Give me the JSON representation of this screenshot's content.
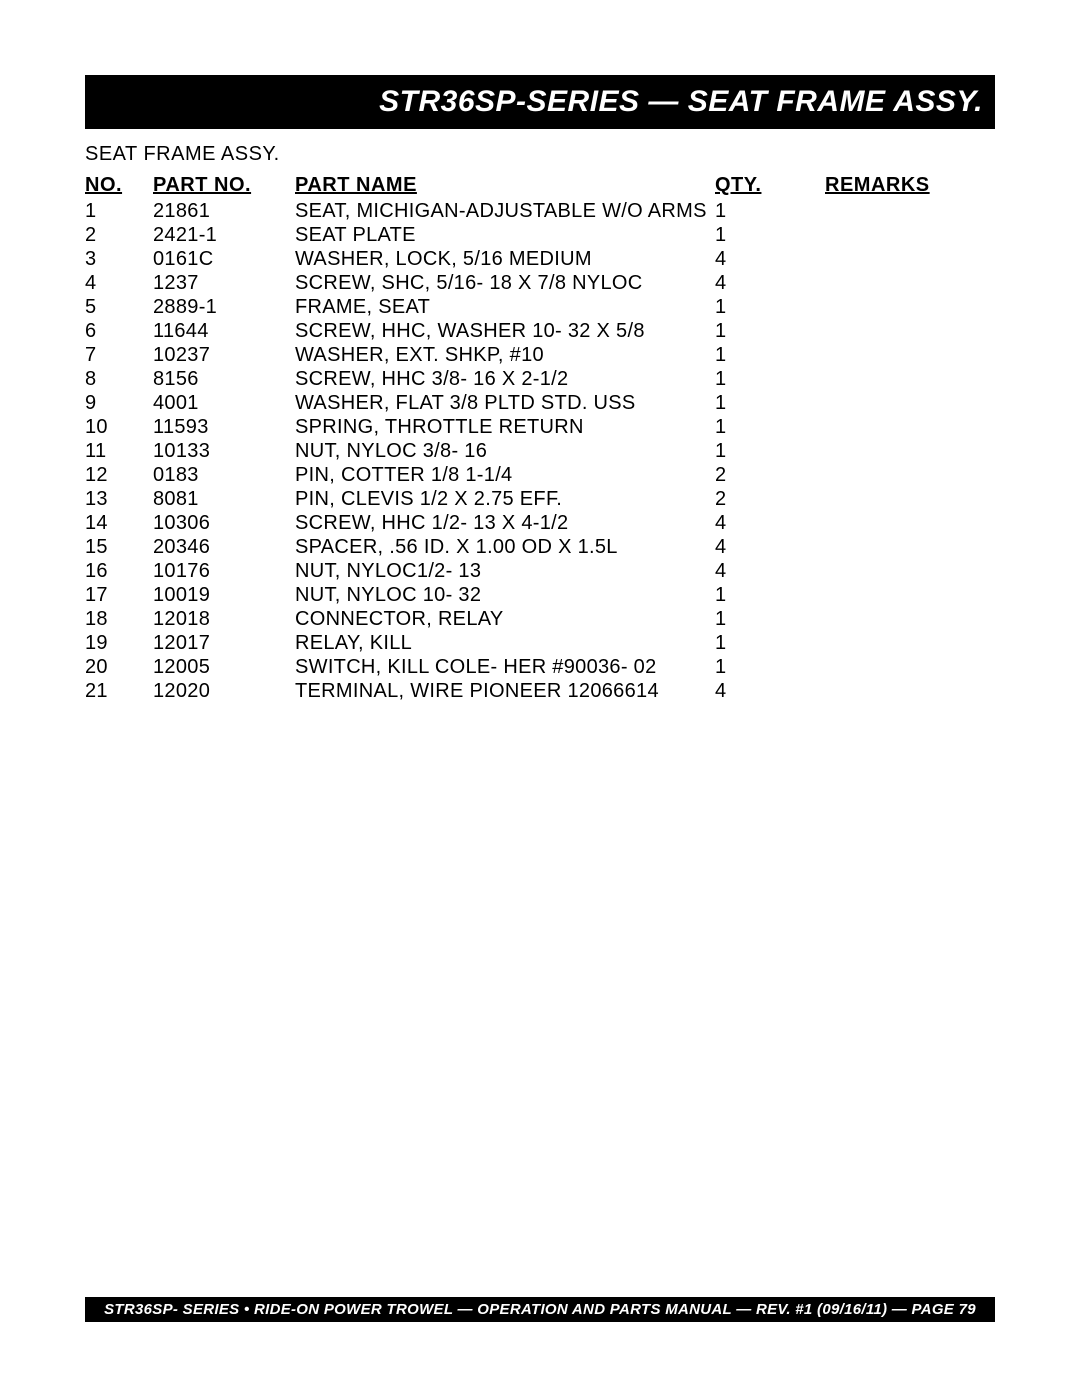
{
  "title_bar": "STR36SP-SERIES — SEAT FRAME  ASSY.",
  "section_label": "SEAT FRAME ASSY.",
  "table": {
    "columns": [
      "NO.",
      "PART NO.",
      "PART NAME",
      "QTY.",
      "REMARKS"
    ],
    "rows": [
      [
        "1",
        "21861",
        "SEAT, MICHIGAN-ADJUSTABLE W/O ARMS",
        "1",
        ""
      ],
      [
        "2",
        "2421-1",
        "SEAT PLATE",
        "1",
        ""
      ],
      [
        "3",
        "0161C",
        "WASHER, LOCK, 5/16 MEDIUM",
        "4",
        ""
      ],
      [
        "4",
        "1237",
        "SCREW, SHC, 5/16- 18 X 7/8 NYLOC",
        "4",
        ""
      ],
      [
        "5",
        "2889-1",
        "FRAME,  SEAT",
        "1",
        ""
      ],
      [
        "6",
        "11644",
        "SCREW, HHC, WASHER 10- 32 X 5/8",
        "1",
        ""
      ],
      [
        "7",
        "10237",
        "WASHER, EXT. SHKP, #10",
        "1",
        ""
      ],
      [
        "8",
        "8156",
        "SCREW, HHC 3/8- 16 X 2-1/2",
        "1",
        ""
      ],
      [
        "9",
        "4001",
        "WASHER, FLAT 3/8 PLTD STD. USS",
        "1",
        ""
      ],
      [
        "10",
        "11593",
        "SPRING, THROTTLE RETURN",
        "1",
        ""
      ],
      [
        "11",
        "10133",
        "NUT, NYLOC 3/8- 16",
        "1",
        ""
      ],
      [
        "12",
        "0183",
        "PIN, COTTER 1/8 1-1/4",
        "2",
        ""
      ],
      [
        "13",
        "8081",
        "PIN, CLEVIS 1/2 X 2.75 EFF.",
        "2",
        ""
      ],
      [
        "14",
        "10306",
        "SCREW, HHC 1/2- 13 X 4-1/2",
        "4",
        ""
      ],
      [
        "15",
        "20346",
        "SPACER, .56 ID.   X 1.00 OD  X 1.5L",
        "4",
        ""
      ],
      [
        "16",
        "10176",
        "NUT, NYLOC1/2- 13",
        "4",
        ""
      ],
      [
        "17",
        "10019",
        "NUT, NYLOC 10- 32",
        "1",
        ""
      ],
      [
        "18",
        "12018",
        "CONNECTOR, RELAY",
        "1",
        ""
      ],
      [
        "19",
        "12017",
        "RELAY, KILL",
        "1",
        ""
      ],
      [
        "20",
        "12005",
        "SWITCH, KILL COLE- HER #90036- 02",
        "1",
        ""
      ],
      [
        "21",
        "12020",
        "TERMINAL, WIRE PIONEER 12066614",
        "4",
        ""
      ]
    ]
  },
  "footer": "STR36SP- SERIES • RIDE-ON POWER TROWEL — OPERATION AND PARTS MANUAL — REV. #1  (09/16/11) — PAGE 79"
}
